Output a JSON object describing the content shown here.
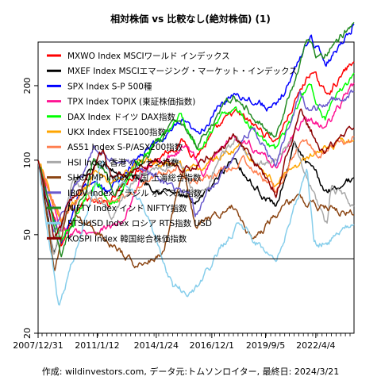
{
  "chart_data": {
    "type": "line",
    "title": "相対株価 vs 比較なし(絶対株価) (1)",
    "footer": "作成: wildinvestors.com, データ元:トムソンロイター, 最終日: 2024/3/21",
    "scale": "log",
    "ylim": [
      20,
      300
    ],
    "xlim": [
      "2007-12-31",
      "2024-03-21"
    ],
    "y_ticks": [
      20,
      50,
      100,
      200
    ],
    "x_ticks": [
      "2007/12/31",
      "2011/1/12",
      "2014/1/24",
      "2016/12/1",
      "2019/9/5",
      "2022/4/4"
    ],
    "reference_line": 40,
    "grid": false,
    "legend_position": "top-left",
    "series": [
      {
        "name": "MXWO Index MSCIワールド インデックス",
        "color": "#ff0000",
        "anchors": [
          [
            "2007-12-31",
            100
          ],
          [
            "2009-03-09",
            45
          ],
          [
            "2010-04-15",
            72
          ],
          [
            "2011-08-10",
            65
          ],
          [
            "2013-01-01",
            90
          ],
          [
            "2015-06-01",
            120
          ],
          [
            "2016-02-01",
            105
          ],
          [
            "2018-01-20",
            155
          ],
          [
            "2020-03-20",
            120
          ],
          [
            "2021-12-31",
            230
          ],
          [
            "2022-10-01",
            185
          ],
          [
            "2024-03-21",
            250
          ]
        ]
      },
      {
        "name": "MXEF Index MSCIエマージング・マーケット・インデックス",
        "color": "#000000",
        "anchors": [
          [
            "2007-12-31",
            100
          ],
          [
            "2008-10-27",
            40
          ],
          [
            "2009-12-31",
            85
          ],
          [
            "2011-01-01",
            95
          ],
          [
            "2013-01-01",
            85
          ],
          [
            "2015-09-01",
            70
          ],
          [
            "2016-01-20",
            63
          ],
          [
            "2018-01-26",
            105
          ],
          [
            "2019-01-01",
            80
          ],
          [
            "2020-03-20",
            65
          ],
          [
            "2021-02-17",
            115
          ],
          [
            "2022-10-01",
            75
          ],
          [
            "2024-03-21",
            85
          ]
        ]
      },
      {
        "name": "SPX Index S-P 500種",
        "color": "#0000ff",
        "anchors": [
          [
            "2007-12-31",
            100
          ],
          [
            "2009-03-09",
            45
          ],
          [
            "2010-04-15",
            80
          ],
          [
            "2011-08-10",
            75
          ],
          [
            "2013-01-01",
            100
          ],
          [
            "2015-06-01",
            140
          ],
          [
            "2016-02-01",
            125
          ],
          [
            "2018-01-20",
            190
          ],
          [
            "2020-03-20",
            160
          ],
          [
            "2021-12-31",
            320
          ],
          [
            "2022-10-01",
            245
          ],
          [
            "2024-03-21",
            355
          ]
        ]
      },
      {
        "name": "TPX Index TOPIX (東証株価指数)",
        "color": "#ff1493",
        "anchors": [
          [
            "2007-12-31",
            100
          ],
          [
            "2009-03-09",
            50
          ],
          [
            "2012-06-01",
            55
          ],
          [
            "2013-05-22",
            90
          ],
          [
            "2015-08-10",
            115
          ],
          [
            "2016-06-24",
            90
          ],
          [
            "2018-01-23",
            130
          ],
          [
            "2020-03-16",
            95
          ],
          [
            "2021-09-14",
            150
          ],
          [
            "2022-10-01",
            135
          ],
          [
            "2024-03-21",
            205
          ]
        ]
      },
      {
        "name": "DAX Index ドイツ DAX指数",
        "color": "#00ff00",
        "anchors": [
          [
            "2007-12-31",
            100
          ],
          [
            "2009-03-09",
            45
          ],
          [
            "2010-12-31",
            85
          ],
          [
            "2011-09-12",
            65
          ],
          [
            "2013-01-01",
            95
          ],
          [
            "2015-04-10",
            150
          ],
          [
            "2016-02-11",
            110
          ],
          [
            "2018-01-23",
            165
          ],
          [
            "2020-03-16",
            110
          ],
          [
            "2021-11-17",
            200
          ],
          [
            "2022-09-29",
            150
          ],
          [
            "2024-03-21",
            225
          ]
        ]
      },
      {
        "name": "UKX Index FTSE100指数",
        "color": "#ffa500",
        "anchors": [
          [
            "2007-12-31",
            100
          ],
          [
            "2009-03-03",
            55
          ],
          [
            "2010-12-31",
            90
          ],
          [
            "2011-09-22",
            80
          ],
          [
            "2013-05-22",
            100
          ],
          [
            "2016-02-11",
            90
          ],
          [
            "2018-05-22",
            115
          ],
          [
            "2020-03-23",
            80
          ],
          [
            "2021-12-31",
            105
          ],
          [
            "2024-03-21",
            120
          ]
        ]
      },
      {
        "name": "AS51 Index S-P/ASX200指数",
        "color": "#ff7f50",
        "anchors": [
          [
            "2007-12-31",
            100
          ],
          [
            "2009-03-06",
            55
          ],
          [
            "2010-04-15",
            75
          ],
          [
            "2011-08-09",
            65
          ],
          [
            "2013-05-01",
            80
          ],
          [
            "2015-03-01",
            95
          ],
          [
            "2016-02-01",
            80
          ],
          [
            "2018-08-01",
            100
          ],
          [
            "2020-03-23",
            75
          ],
          [
            "2021-08-01",
            120
          ],
          [
            "2022-06-01",
            105
          ],
          [
            "2024-03-21",
            125
          ]
        ]
      },
      {
        "name": "HSI Index 香港 ハンセン指数",
        "color": "#a9a9a9",
        "anchors": [
          [
            "2007-12-31",
            100
          ],
          [
            "2008-10-27",
            40
          ],
          [
            "2009-11-01",
            85
          ],
          [
            "2011-10-04",
            60
          ],
          [
            "2013-01-01",
            85
          ],
          [
            "2015-04-28",
            100
          ],
          [
            "2016-02-12",
            70
          ],
          [
            "2018-01-26",
            120
          ],
          [
            "2019-08-01",
            95
          ],
          [
            "2021-02-17",
            115
          ],
          [
            "2022-10-31",
            55
          ],
          [
            "2023-01-27",
            80
          ],
          [
            "2024-03-21",
            65
          ]
        ]
      },
      {
        "name": "SHCOMP Index 中国 上海総合指数",
        "color": "#8b4513",
        "anchors": [
          [
            "2007-12-31",
            100
          ],
          [
            "2008-11-04",
            35
          ],
          [
            "2009-08-04",
            65
          ],
          [
            "2012-12-03",
            38
          ],
          [
            "2014-06-01",
            42
          ],
          [
            "2015-06-12",
            95
          ],
          [
            "2016-01-28",
            55
          ],
          [
            "2018-01-29",
            65
          ],
          [
            "2019-01-03",
            48
          ],
          [
            "2021-02-17",
            70
          ],
          [
            "2024-03-21",
            60
          ]
        ]
      },
      {
        "name": "IBOV Index ブラジル ボベスパ指数",
        "color": "#6a5acd",
        "anchors": [
          [
            "2007-12-31",
            100
          ],
          [
            "2008-10-27",
            50
          ],
          [
            "2010-11-01",
            110
          ],
          [
            "2013-01-01",
            95
          ],
          [
            "2015-12-01",
            70
          ],
          [
            "2016-01-21",
            60
          ],
          [
            "2019-01-01",
            140
          ],
          [
            "2020-03-23",
            95
          ],
          [
            "2021-06-07",
            190
          ],
          [
            "2022-01-01",
            155
          ],
          [
            "2024-03-21",
            190
          ]
        ]
      },
      {
        "name": "NIFTY Index インド NIFTY指数",
        "color": "#228b22",
        "anchors": [
          [
            "2007-12-31",
            100
          ],
          [
            "2009-03-09",
            40
          ],
          [
            "2010-11-05",
            100
          ],
          [
            "2011-12-20",
            75
          ],
          [
            "2013-06-01",
            100
          ],
          [
            "2015-03-04",
            145
          ],
          [
            "2016-02-29",
            115
          ],
          [
            "2018-01-29",
            180
          ],
          [
            "2020-03-24",
            125
          ],
          [
            "2021-10-19",
            300
          ],
          [
            "2022-06-17",
            255
          ],
          [
            "2024-03-21",
            360
          ]
        ]
      },
      {
        "name": "RTSIUSD Index ロシア RTS指数 USD",
        "color": "#87ceeb",
        "anchors": [
          [
            "2007-12-31",
            100
          ],
          [
            "2009-01-23",
            25
          ],
          [
            "2011-04-08",
            100
          ],
          [
            "2013-06-01",
            65
          ],
          [
            "2014-12-16",
            30
          ],
          [
            "2016-01-20",
            30
          ],
          [
            "2018-04-01",
            55
          ],
          [
            "2020-03-18",
            40
          ],
          [
            "2021-10-26",
            90
          ],
          [
            "2022-03-01",
            45
          ],
          [
            "2022-05-01",
            45
          ],
          [
            "2024-03-21",
            55
          ]
        ]
      },
      {
        "name": "KOSPI Index 韓国総合株価指数",
        "color": "#8b0000",
        "anchors": [
          [
            "2007-12-31",
            100
          ],
          [
            "2008-10-24",
            50
          ],
          [
            "2011-04-27",
            110
          ],
          [
            "2011-09-26",
            85
          ],
          [
            "2014-01-01",
            100
          ],
          [
            "2016-01-01",
            95
          ],
          [
            "2018-01-29",
            125
          ],
          [
            "2020-03-19",
            75
          ],
          [
            "2021-06-25",
            155
          ],
          [
            "2022-09-30",
            105
          ],
          [
            "2024-03-21",
            135
          ]
        ]
      }
    ]
  }
}
